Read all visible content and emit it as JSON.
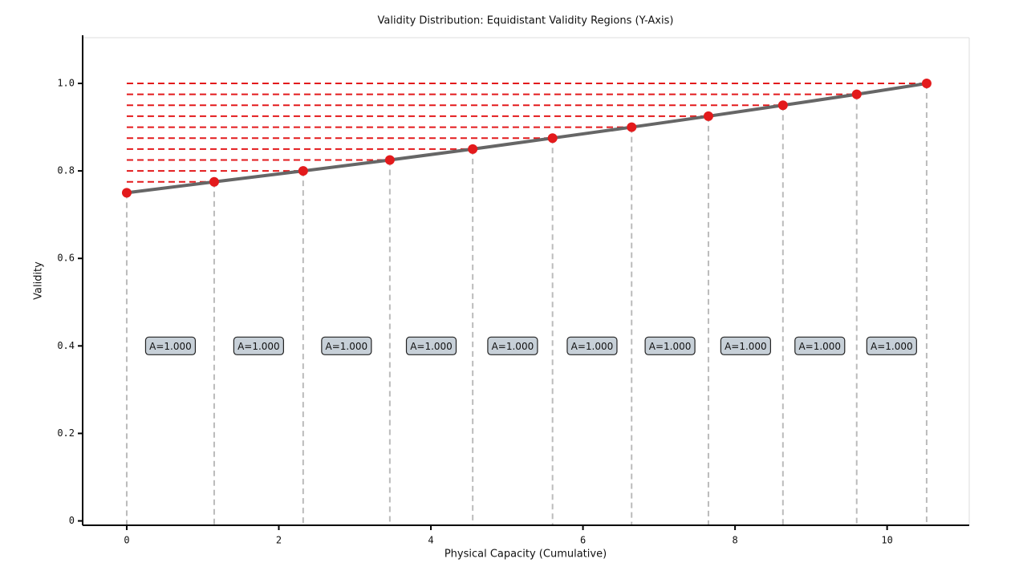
{
  "chart_data": {
    "type": "line",
    "title": "Validity Distribution: Equidistant Validity Regions (Y-Axis)",
    "x_label": "Physical Capacity  (Cumulative)",
    "y_label": "Validity",
    "series": [
      {
        "color": "#666666",
        "marker_color": "#e31a1c",
        "x": [
          0,
          1.15,
          2.32,
          3.46,
          4.55,
          5.6,
          6.64,
          7.65,
          8.63,
          9.6,
          10.52
        ],
        "values": [
          0.75,
          0.775,
          0.8,
          0.825,
          0.85,
          0.875,
          0.9,
          0.925,
          0.95,
          0.975,
          1.0
        ]
      }
    ],
    "region_labels": [
      "A=1.000",
      "A=1.000",
      "A=1.000",
      "A=1.000",
      "A=1.000",
      "A=1.000",
      "A=1.000",
      "A=1.000",
      "A=1.000",
      "A=1.000"
    ],
    "region_label_y": 0.4,
    "xlim": [
      -0.58,
      11.08
    ],
    "ylim": [
      -0.01,
      1.11
    ],
    "xticks": [
      0,
      2,
      4,
      6,
      8,
      10
    ],
    "yticks": [
      0,
      0.2,
      0.4,
      0.6,
      0.8,
      {
        "value": 1,
        "label": "1.0"
      }
    ],
    "hline_color": "#e31a1c",
    "vline_color": "#bbbbbb",
    "grid": false
  }
}
